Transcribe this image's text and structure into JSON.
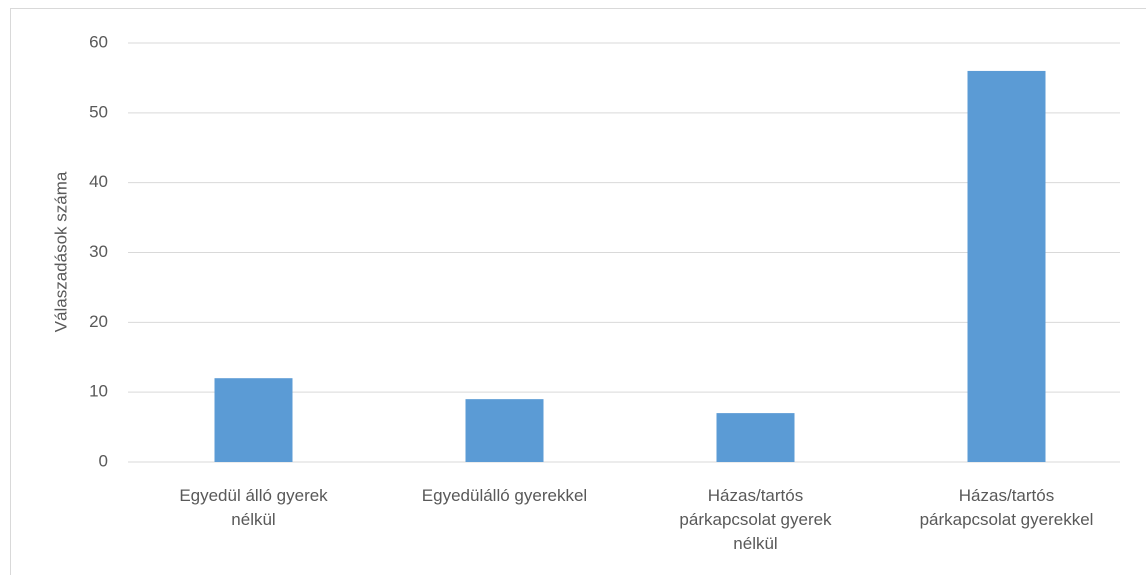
{
  "chart_data": {
    "type": "bar",
    "y_label": "Válaszadások száma",
    "categories": [
      "Egyedül álló gyerek nélkül",
      "Egyedülálló gyerekkel",
      "Házas/tartós párkapcsolat gyerek nélkül",
      "Házas/tartós párkapcsolat gyerekkel"
    ],
    "values": [
      12,
      9,
      7,
      56
    ],
    "color": "#5b9bd5",
    "ylim": [
      0,
      60
    ],
    "yticks": [
      0,
      10,
      20,
      30,
      40,
      50,
      60
    ],
    "grid": true
  }
}
